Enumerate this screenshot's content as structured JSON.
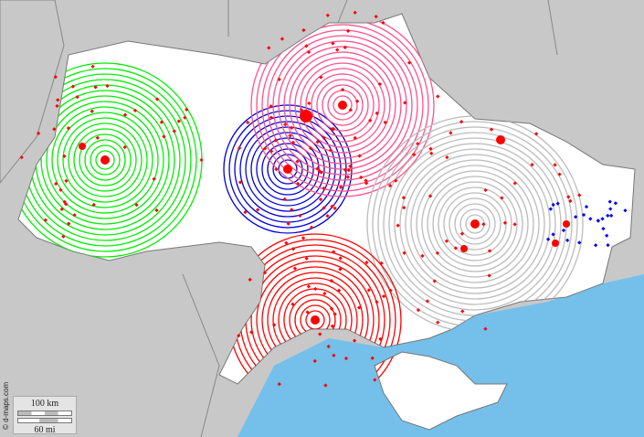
{
  "map": {
    "copyright": "© d-maps.com",
    "scale": {
      "km_label": "100 km",
      "mi_label": "60 mi"
    },
    "colors": {
      "background": "#c8c8c8",
      "land": "#ffffff",
      "sea": "#74c0ea",
      "border": "#888888",
      "points": "#ff0000",
      "zones": [
        "#00ee00",
        "#0000dd",
        "#ff4f8a",
        "#bbbbbb",
        "#ff0000",
        "#0000ff"
      ]
    }
  }
}
